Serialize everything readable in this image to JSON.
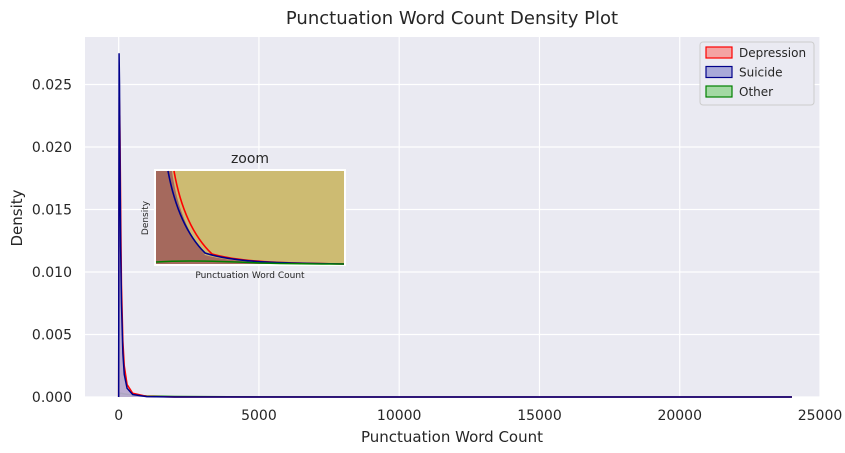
{
  "chart_data": {
    "type": "area",
    "title": "Punctuation Word Count Density Plot",
    "xlabel": "Punctuation Word Count",
    "ylabel": "Density",
    "xlim": [
      -1200,
      25000
    ],
    "ylim": [
      0,
      0.0288
    ],
    "xticks": [
      0,
      5000,
      10000,
      15000,
      20000,
      25000
    ],
    "xtick_labels": [
      "0",
      "5000",
      "10000",
      "15000",
      "20000",
      "25000"
    ],
    "yticks": [
      0.0,
      0.005,
      0.01,
      0.015,
      0.02,
      0.025
    ],
    "ytick_labels": [
      "0.000",
      "0.005",
      "0.010",
      "0.015",
      "0.020",
      "0.025"
    ],
    "grid": true,
    "legend_position": "top-right",
    "series": [
      {
        "name": "Depression",
        "color": "#ff0000",
        "fill": "#f4a3a3",
        "x": [
          0,
          20,
          40,
          60,
          80,
          100,
          150,
          200,
          300,
          500,
          1000,
          2000,
          5000,
          24000
        ],
        "y": [
          0.0,
          0.024,
          0.0225,
          0.018,
          0.013,
          0.009,
          0.0045,
          0.0025,
          0.001,
          0.0003,
          5e-05,
          0.0,
          0.0,
          0.0
        ]
      },
      {
        "name": "Suicide",
        "color": "#00008b",
        "fill": "#a9a9d9",
        "x": [
          0,
          15,
          30,
          50,
          70,
          100,
          150,
          200,
          300,
          500,
          1000,
          2000,
          5000,
          24000
        ],
        "y": [
          0.0,
          0.0275,
          0.025,
          0.018,
          0.012,
          0.0075,
          0.0035,
          0.0018,
          0.0007,
          0.0002,
          3e-05,
          0.0,
          0.0,
          0.0
        ]
      },
      {
        "name": "Other",
        "color": "#008000",
        "fill": "#a3d9a3",
        "x": [
          0,
          20,
          50,
          100,
          200,
          500,
          1000,
          2000,
          5000,
          10000,
          24000
        ],
        "y": [
          0.0,
          0.0002,
          0.0003,
          0.0003,
          0.00025,
          0.00015,
          8e-05,
          4e-05,
          1e-05,
          0.0,
          0.0
        ]
      }
    ],
    "inset": {
      "title": "zoom",
      "xlabel": "Punctuation Word Count",
      "ylabel": "Density"
    }
  }
}
